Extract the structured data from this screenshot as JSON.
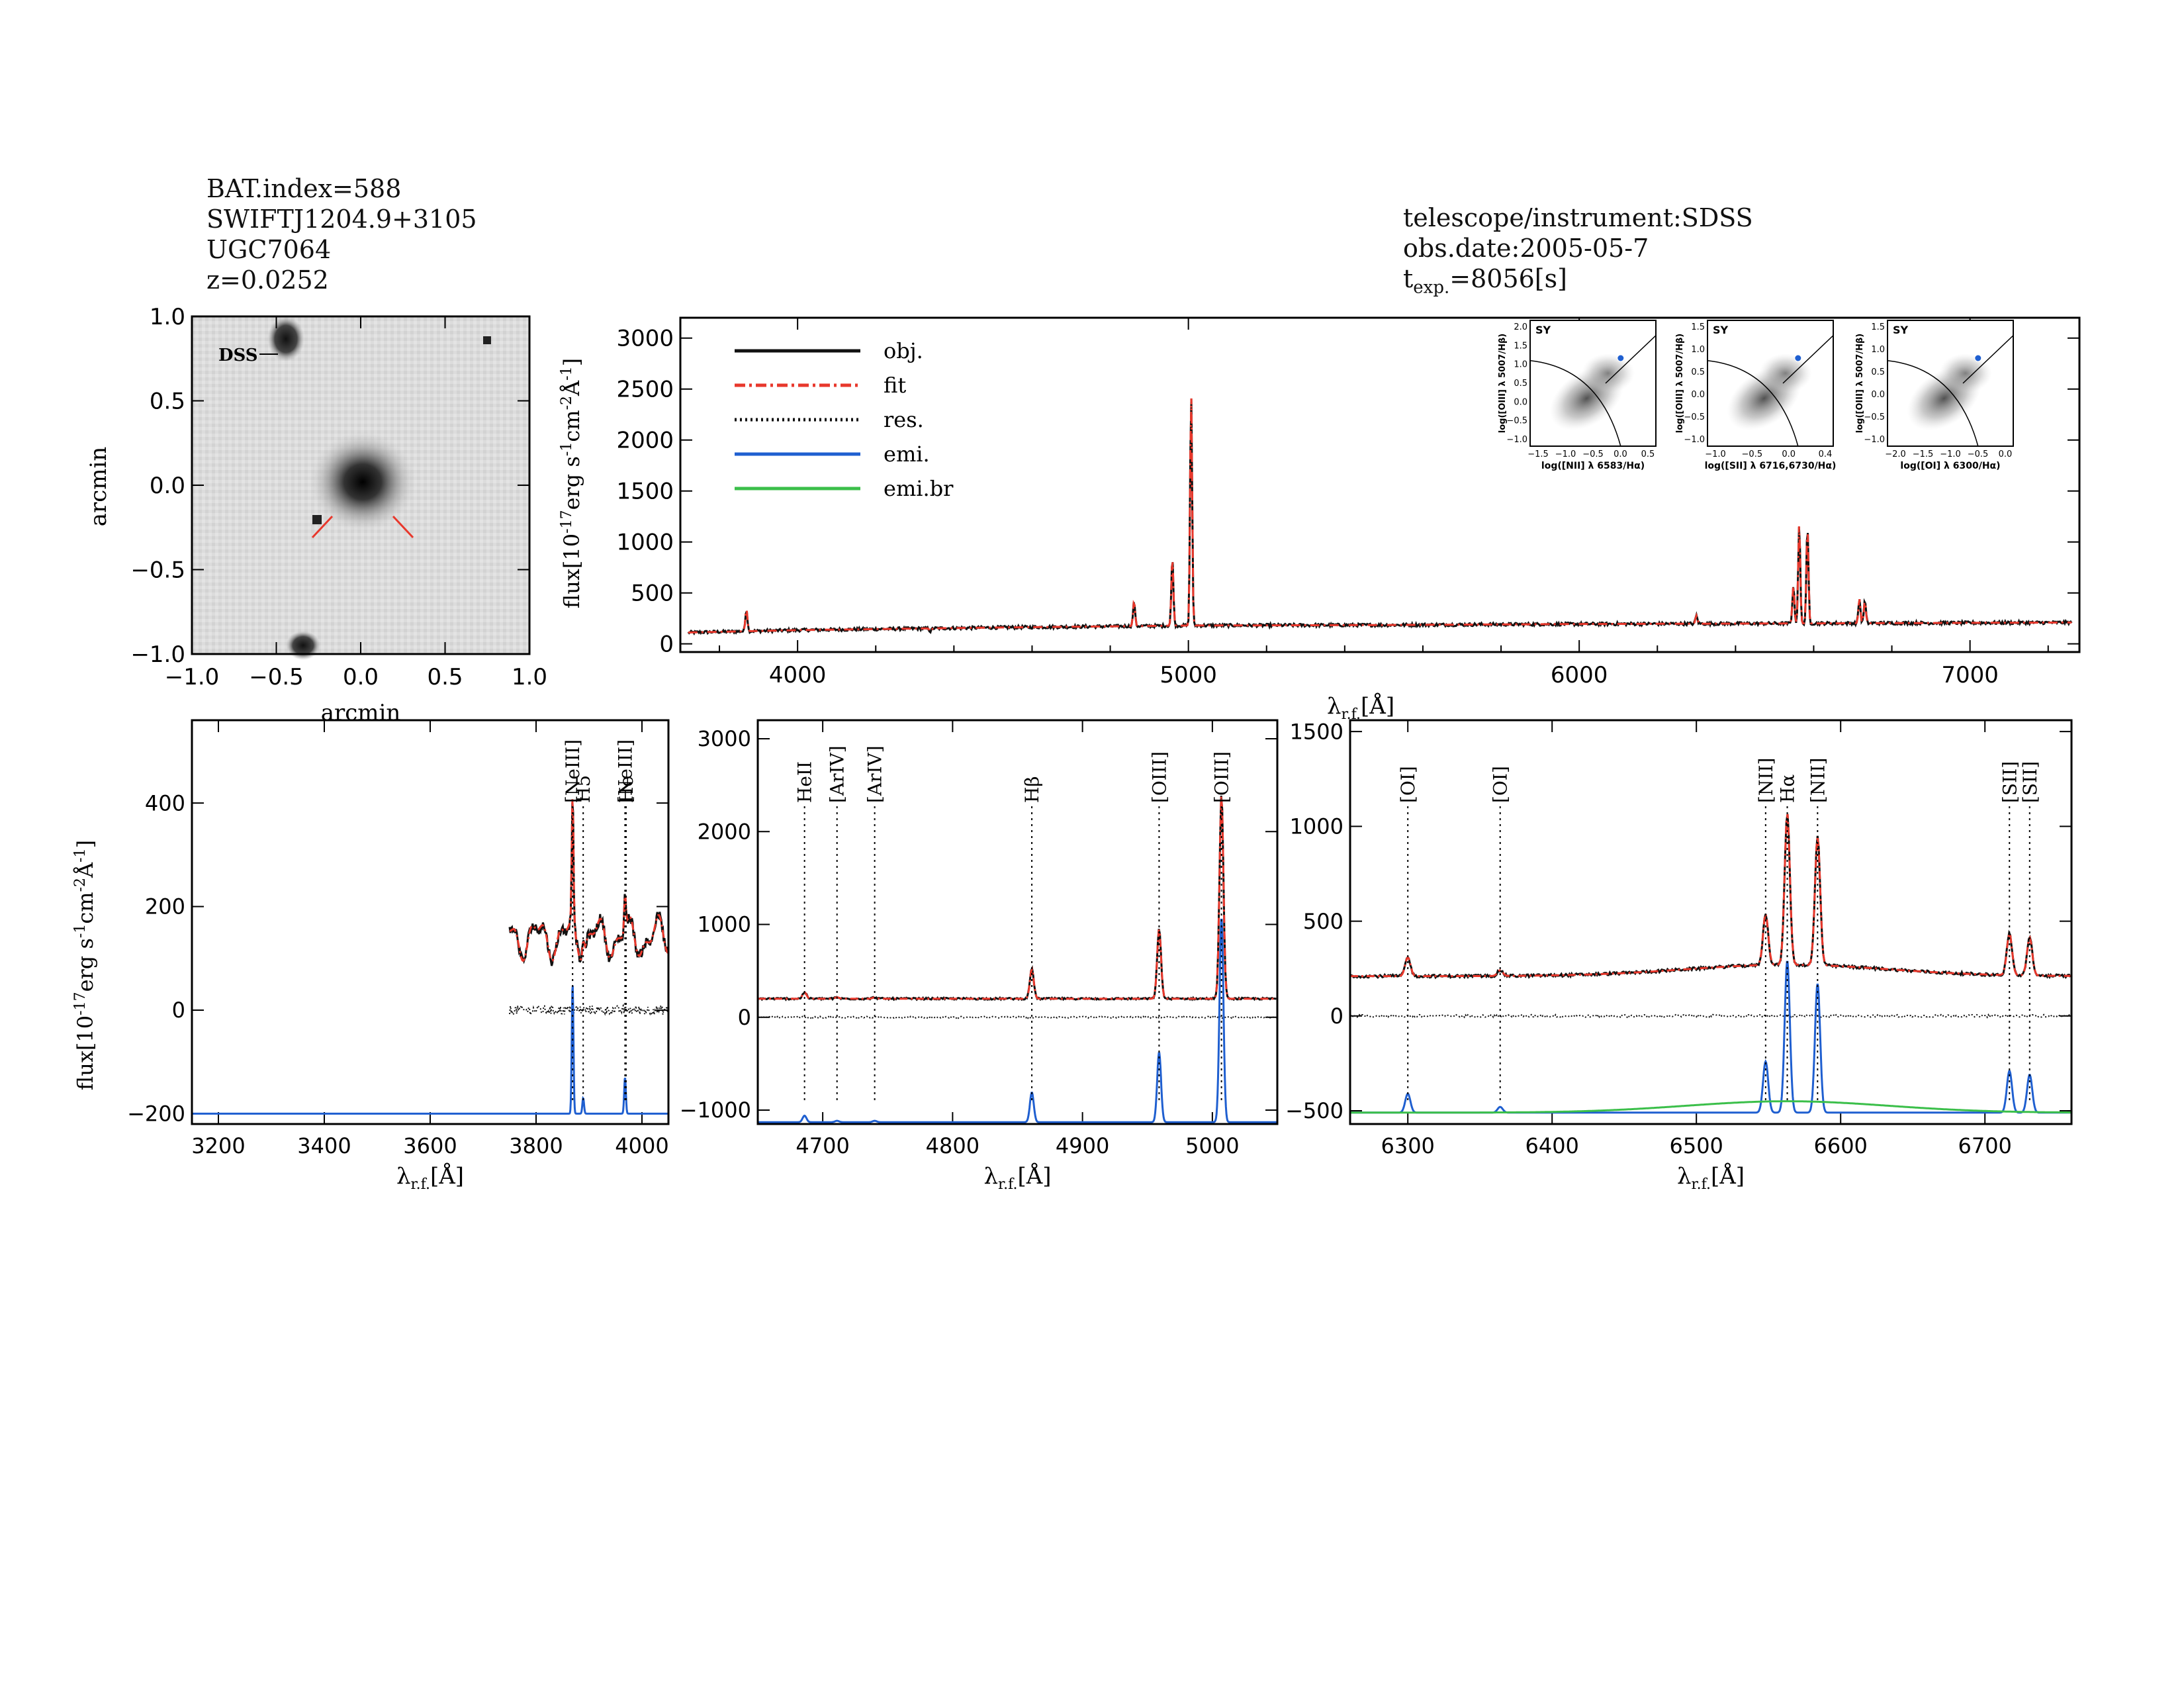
{
  "header_left": {
    "bat_index": "BAT.index=588",
    "swift_name": "SWIFTJ1204.9+3105",
    "galaxy": "UGC7064",
    "redshift": "z=0.0252"
  },
  "header_right": {
    "instrument": "telescope/instrument:SDSS",
    "obs_date": "obs.date:2005-05-7",
    "exposure_prefix": "t",
    "exposure_sub": "exp.",
    "exposure_value": "=8056[s]"
  },
  "colors": {
    "obj": "#111111",
    "fit": "#e8382c",
    "res": "#111111",
    "emi": "#1f5fd0",
    "emi_br": "#3bbf4a",
    "marker": "#e8382c"
  },
  "chart_data": [
    {
      "type": "image",
      "xlabel": "arcmin",
      "ylabel": "arcmin",
      "xlim": [
        -1.0,
        1.0
      ],
      "ylim": [
        -1.0,
        1.0
      ],
      "xticks": [
        "-1.0",
        "-0.5",
        "0.0",
        "0.5",
        "1.0"
      ],
      "yticks": [
        "-1.0",
        "-0.5",
        "0.0",
        "0.5",
        "1.0"
      ],
      "survey_label": "DSS"
    },
    {
      "type": "line",
      "xlabel": "λr.f.[Å]",
      "ylabel": "flux[10^-17 erg s^-1 cm^-2 Å^-1]",
      "xlim": [
        3700,
        7280
      ],
      "ylim": [
        -80,
        3200
      ],
      "xticks": [
        4000,
        5000,
        6000,
        7000
      ],
      "yticks": [
        0,
        500,
        1000,
        1500,
        2000,
        2500,
        3000
      ],
      "legend_position": "top-left",
      "series": [
        {
          "name": "obj.",
          "style": "solid"
        },
        {
          "name": "fit",
          "style": "dash-dot"
        },
        {
          "name": "res.",
          "style": "dotted"
        },
        {
          "name": "emi.",
          "style": "solid"
        },
        {
          "name": "emi.br",
          "style": "solid"
        }
      ],
      "continuum": [
        [
          3700,
          110
        ],
        [
          4000,
          135
        ],
        [
          4500,
          160
        ],
        [
          5000,
          180
        ],
        [
          5500,
          185
        ],
        [
          6000,
          195
        ],
        [
          6500,
          200
        ],
        [
          7280,
          210
        ]
      ],
      "emission_lines": [
        {
          "x": 3869,
          "peak": 400
        },
        {
          "x": 4340,
          "peak": 150
        },
        {
          "x": 4861,
          "peak": 420
        },
        {
          "x": 4959,
          "peak": 850
        },
        {
          "x": 5007,
          "peak": 2450
        },
        {
          "x": 6300,
          "peak": 260
        },
        {
          "x": 6548,
          "peak": 550
        },
        {
          "x": 6563,
          "peak": 1150
        },
        {
          "x": 6584,
          "peak": 1120
        },
        {
          "x": 6717,
          "peak": 420
        },
        {
          "x": 6731,
          "peak": 400
        }
      ]
    },
    {
      "type": "diagnostic",
      "panels": [
        {
          "label": "SY",
          "xlabel": "log([NII] λ 6583/Hα)",
          "ylabel": "log([OIII] λ 5007/Hβ)",
          "xticks": [
            "-1.5",
            "-1.0",
            "-0.5",
            "0.0",
            "0.5"
          ],
          "yticks": [
            "-1.0",
            "-0.5",
            "0.0",
            "0.5",
            "1.0",
            "1.5",
            "2.0"
          ],
          "point": [
            -0.1,
            0.72
          ]
        },
        {
          "label": "SY",
          "xlabel": "log([SII] λ 6716,6730/Hα)",
          "ylabel": "log([OIII] λ 5007/Hβ)",
          "xticks": [
            "-1.0",
            "-0.5",
            "0.0",
            "0.4"
          ],
          "yticks": [
            "-1.0",
            "-0.5",
            "0.0",
            "0.5",
            "1.0",
            "1.5"
          ],
          "point": [
            -0.3,
            0.85
          ]
        },
        {
          "label": "SY",
          "xlabel": "log([OI] λ 6300/Hα)",
          "ylabel": "log([OIII] λ 5007/Hβ)",
          "xticks": [
            "-2.0",
            "-1.5",
            "-1.0",
            "-0.5",
            "0.0"
          ],
          "yticks": [
            "-1.0",
            "-0.5",
            "0.0",
            "0.5",
            "1.0",
            "1.5"
          ],
          "point": [
            -1.0,
            0.85
          ]
        }
      ]
    },
    {
      "type": "line",
      "xlabel": "λr.f.[Å]",
      "ylabel": "flux[10^-17 erg s^-1 cm^-2 Å^-1]",
      "xlim": [
        3150,
        4050
      ],
      "ylim": [
        -220,
        560
      ],
      "xticks": [
        3200,
        3400,
        3600,
        3800,
        4000
      ],
      "yticks": [
        -200,
        0,
        200,
        400
      ],
      "spectrum_start": 3750,
      "continuum_level": 140,
      "emission_offset": -200,
      "line_labels": [
        {
          "text": "[NeIII]",
          "x": 3869,
          "color": "black"
        },
        {
          "text": "H5",
          "x": 3889,
          "color": "black"
        },
        {
          "text": "[NeIII]",
          "x": 3968,
          "color": "black"
        },
        {
          "text": "He",
          "x": 3970,
          "color": "black"
        }
      ],
      "emission_lines": [
        {
          "x": 3869,
          "peak": 250
        },
        {
          "x": 3889,
          "peak": 30
        },
        {
          "x": 3968,
          "peak": 70
        }
      ]
    },
    {
      "type": "line",
      "xlabel": "λr.f.[Å]",
      "xlim": [
        4650,
        5050
      ],
      "ylim": [
        -1150,
        3200
      ],
      "xticks": [
        4700,
        4800,
        4900,
        5000
      ],
      "yticks": [
        -1000,
        0,
        1000,
        2000,
        3000
      ],
      "continuum_level": 200,
      "emission_offset": -1130,
      "line_labels": [
        {
          "text": "HeII",
          "x": 4686,
          "color": "black"
        },
        {
          "text": "[ArIV]",
          "x": 4711,
          "color": "red"
        },
        {
          "text": "[ArIV]",
          "x": 4740,
          "color": "red"
        },
        {
          "text": "Hβ",
          "x": 4861,
          "color": "black"
        },
        {
          "text": "[OIII]",
          "x": 4959,
          "color": "black"
        },
        {
          "text": "[OIII]",
          "x": 5007,
          "color": "black"
        }
      ],
      "emission_lines": [
        {
          "x": 4686,
          "peak": 70
        },
        {
          "x": 4711,
          "peak": 15
        },
        {
          "x": 4740,
          "peak": 15
        },
        {
          "x": 4861,
          "peak": 320
        },
        {
          "x": 4959,
          "peak": 750
        },
        {
          "x": 5007,
          "peak": 2200
        }
      ]
    },
    {
      "type": "line",
      "xlabel": "λr.f.[Å]",
      "xlim": [
        6260,
        6760
      ],
      "ylim": [
        -570,
        1560
      ],
      "xticks": [
        6300,
        6400,
        6500,
        6600,
        6700
      ],
      "yticks": [
        -500,
        0,
        500,
        1000,
        1500
      ],
      "continuum_level": 210,
      "emission_offset": -510,
      "line_labels": [
        {
          "text": "[OI]",
          "x": 6300,
          "color": "black"
        },
        {
          "text": "[OI]",
          "x": 6364,
          "color": "black"
        },
        {
          "text": "[NII]",
          "x": 6548,
          "color": "black"
        },
        {
          "text": "Hα",
          "x": 6563,
          "color": "black"
        },
        {
          "text": "[NII]",
          "x": 6584,
          "color": "black"
        },
        {
          "text": "[SII]",
          "x": 6717,
          "color": "black"
        },
        {
          "text": "[SII]",
          "x": 6731,
          "color": "black"
        }
      ],
      "emission_lines": [
        {
          "x": 6300,
          "peak": 100
        },
        {
          "x": 6364,
          "peak": 30
        },
        {
          "x": 6548,
          "peak": 270
        },
        {
          "x": 6563,
          "peak": 800
        },
        {
          "x": 6584,
          "peak": 680
        },
        {
          "x": 6717,
          "peak": 220
        },
        {
          "x": 6731,
          "peak": 200
        }
      ],
      "broad_component": {
        "x": 6563,
        "peak": 60
      }
    }
  ]
}
